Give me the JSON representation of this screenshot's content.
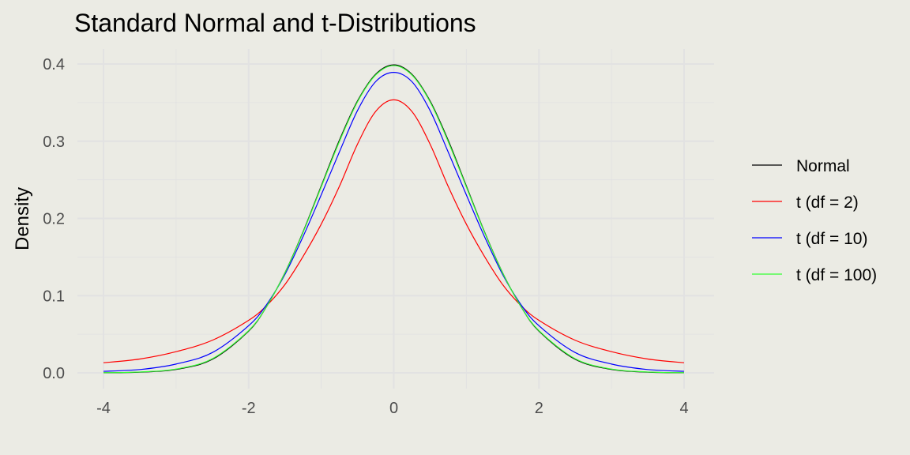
{
  "chart_data": {
    "type": "line",
    "title": "Standard Normal and t-Distributions",
    "xlabel": "",
    "ylabel": "Density",
    "xlim": [
      -4,
      4
    ],
    "ylim": [
      0,
      0.4
    ],
    "x_ticks": [
      -4,
      -2,
      0,
      2,
      4
    ],
    "y_ticks": [
      0.0,
      0.1,
      0.2,
      0.3,
      0.4
    ],
    "x_tick_labels": [
      "-4",
      "-2",
      "0",
      "2",
      "4"
    ],
    "y_tick_labels": [
      "0.0",
      "0.1",
      "0.2",
      "0.3",
      "0.4"
    ],
    "grid": true,
    "legend_position": "right",
    "x": [
      -4,
      -3.5,
      -3,
      -2.5,
      -2,
      -1.75,
      -1.5,
      -1.25,
      -1,
      -0.75,
      -0.5,
      -0.25,
      0,
      0.25,
      0.5,
      0.75,
      1,
      1.25,
      1.5,
      1.75,
      2,
      2.5,
      3,
      3.5,
      4
    ],
    "series": [
      {
        "name": "Normal",
        "color": "#000000",
        "values": [
          0.0001,
          0.0009,
          0.0044,
          0.0175,
          0.054,
          0.0863,
          0.1295,
          0.1826,
          0.242,
          0.3011,
          0.3521,
          0.3867,
          0.3989,
          0.3867,
          0.3521,
          0.3011,
          0.242,
          0.1826,
          0.1295,
          0.0863,
          0.054,
          0.0175,
          0.0044,
          0.0009,
          0.0001
        ]
      },
      {
        "name": "t (df = 2)",
        "color": "#ff0000",
        "values": [
          0.0131,
          0.0179,
          0.0274,
          0.0422,
          0.068,
          0.0874,
          0.1143,
          0.1507,
          0.1925,
          0.2414,
          0.2962,
          0.3385,
          0.3536,
          0.3385,
          0.2962,
          0.2414,
          0.1925,
          0.1507,
          0.1143,
          0.0874,
          0.068,
          0.0422,
          0.0274,
          0.0179,
          0.0131
        ]
      },
      {
        "name": "t (df = 10)",
        "color": "#0000ff",
        "values": [
          0.002,
          0.0043,
          0.0114,
          0.0263,
          0.0611,
          0.0887,
          0.1274,
          0.1765,
          0.2304,
          0.2859,
          0.3397,
          0.3771,
          0.3891,
          0.3771,
          0.3397,
          0.2859,
          0.2304,
          0.1765,
          0.1274,
          0.0887,
          0.0611,
          0.0263,
          0.0114,
          0.0043,
          0.002
        ]
      },
      {
        "name": "t (df = 100)",
        "color": "#33ff33",
        "values": [
          0.0002,
          0.0011,
          0.0049,
          0.0183,
          0.0547,
          0.0865,
          0.1293,
          0.1819,
          0.2407,
          0.2994,
          0.3509,
          0.3857,
          0.3979,
          0.3857,
          0.3509,
          0.2994,
          0.2407,
          0.1819,
          0.1293,
          0.0865,
          0.0547,
          0.0183,
          0.0049,
          0.0011,
          0.0002
        ]
      }
    ]
  }
}
